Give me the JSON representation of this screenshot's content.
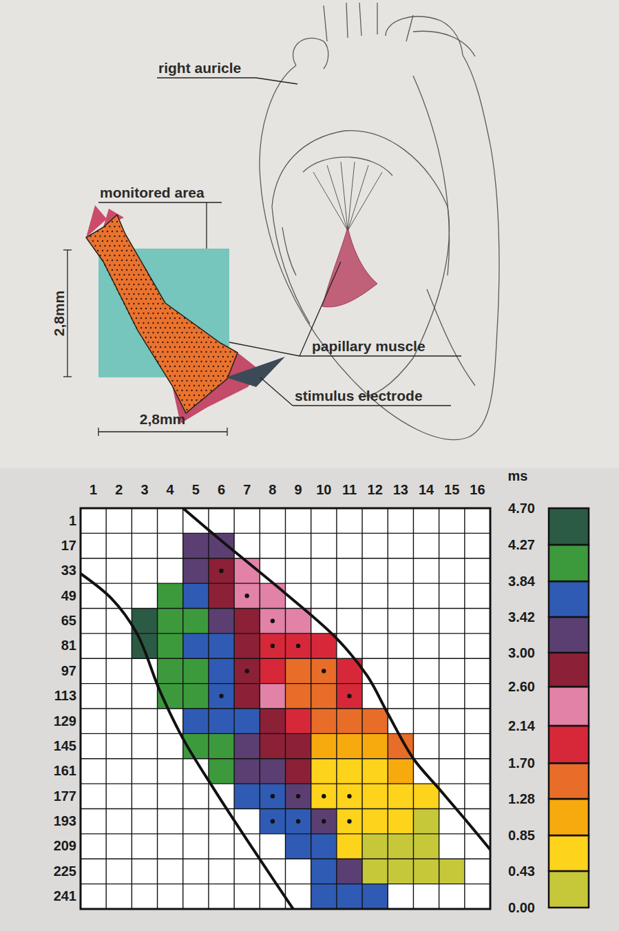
{
  "illustration": {
    "right_auricle": "right auricle",
    "monitored_area": "monitored area",
    "papillary_muscle": "papillary muscle",
    "stimulus_electrode": "stimulus electrode",
    "height": "2,8mm",
    "width": "2,8mm"
  },
  "chart_data": {
    "type": "heatmap",
    "x": [
      1,
      2,
      3,
      4,
      5,
      6,
      7,
      8,
      9,
      10,
      11,
      12,
      13,
      14,
      15,
      16
    ],
    "y": [
      1,
      17,
      33,
      49,
      65,
      81,
      97,
      113,
      129,
      145,
      161,
      177,
      193,
      209,
      225,
      241
    ],
    "values": [
      [
        null,
        null,
        null,
        null,
        null,
        null,
        null,
        null,
        null,
        null,
        null,
        null,
        null,
        null,
        null,
        null
      ],
      [
        null,
        null,
        null,
        null,
        3.21,
        3.21,
        null,
        null,
        null,
        null,
        null,
        null,
        null,
        null,
        null,
        null
      ],
      [
        null,
        null,
        null,
        null,
        3.21,
        2.8,
        2.37,
        null,
        null,
        null,
        null,
        null,
        null,
        null,
        null,
        null
      ],
      [
        null,
        null,
        null,
        4.05,
        3.63,
        2.8,
        2.37,
        2.37,
        null,
        null,
        null,
        null,
        null,
        null,
        null,
        null
      ],
      [
        null,
        null,
        4.49,
        4.05,
        4.05,
        3.21,
        2.8,
        2.37,
        2.37,
        null,
        null,
        null,
        null,
        null,
        null,
        null
      ],
      [
        null,
        null,
        4.49,
        4.05,
        3.63,
        3.63,
        2.8,
        1.92,
        1.92,
        1.92,
        null,
        null,
        null,
        null,
        null,
        null
      ],
      [
        null,
        null,
        null,
        4.05,
        4.05,
        3.63,
        2.8,
        1.92,
        1.49,
        1.49,
        1.92,
        null,
        null,
        null,
        null,
        null
      ],
      [
        null,
        null,
        null,
        4.05,
        4.05,
        3.63,
        2.8,
        2.37,
        1.49,
        1.49,
        1.92,
        null,
        null,
        null,
        null,
        null
      ],
      [
        null,
        null,
        null,
        null,
        3.63,
        3.63,
        3.63,
        2.8,
        1.92,
        1.49,
        1.49,
        1.49,
        null,
        null,
        null,
        null
      ],
      [
        null,
        null,
        null,
        null,
        4.05,
        4.05,
        3.21,
        2.8,
        2.8,
        1.07,
        1.07,
        1.07,
        1.49,
        null,
        null,
        null
      ],
      [
        null,
        null,
        null,
        null,
        null,
        4.05,
        3.21,
        3.21,
        2.8,
        0.64,
        0.64,
        0.64,
        1.07,
        null,
        null,
        null
      ],
      [
        null,
        null,
        null,
        null,
        null,
        null,
        3.63,
        3.63,
        3.21,
        0.64,
        0.64,
        0.64,
        0.64,
        0.64,
        null,
        null
      ],
      [
        null,
        null,
        null,
        null,
        null,
        null,
        null,
        3.63,
        3.63,
        3.21,
        0.64,
        0.64,
        0.64,
        0.21,
        null,
        null
      ],
      [
        null,
        null,
        null,
        null,
        null,
        null,
        null,
        null,
        3.63,
        3.63,
        0.64,
        0.21,
        0.21,
        0.21,
        null,
        null
      ],
      [
        null,
        null,
        null,
        null,
        null,
        null,
        null,
        null,
        null,
        3.63,
        3.21,
        0.21,
        0.21,
        0.21,
        0.21,
        null
      ],
      [
        null,
        null,
        null,
        null,
        null,
        null,
        null,
        null,
        null,
        3.63,
        3.63,
        3.63,
        null,
        null,
        null,
        null
      ]
    ],
    "dots": [
      [
        33,
        6
      ],
      [
        49,
        7
      ],
      [
        65,
        8
      ],
      [
        81,
        8
      ],
      [
        81,
        9
      ],
      [
        97,
        7
      ],
      [
        97,
        10
      ],
      [
        113,
        6
      ],
      [
        113,
        11
      ],
      [
        177,
        8
      ],
      [
        177,
        9
      ],
      [
        177,
        10
      ],
      [
        177,
        11
      ],
      [
        193,
        8
      ],
      [
        193,
        9
      ],
      [
        193,
        10
      ],
      [
        193,
        11
      ]
    ],
    "color_bar": {
      "title": "ms",
      "range": [
        0,
        4.7
      ],
      "ticks": [
        {
          "value": 0,
          "label": "0.00"
        },
        0.43,
        0.85,
        1.28,
        {
          "value": 1.7,
          "label": "1.70"
        },
        2.14,
        {
          "value": 2.6,
          "label": "2.60"
        },
        {
          "value": 3,
          "label": "3.00"
        },
        3.42,
        3.84,
        4.27,
        {
          "value": 4.7,
          "label": "4.70"
        }
      ],
      "colors": [
        "#c6c83a",
        "#fdd31c",
        "#f7aa0e",
        "#e86d28",
        "#d7283a",
        "#e182a6",
        "#8c2037",
        "#5b3f72",
        "#2f5bb4",
        "#3c9a3c",
        "#2c5b45"
      ]
    }
  }
}
